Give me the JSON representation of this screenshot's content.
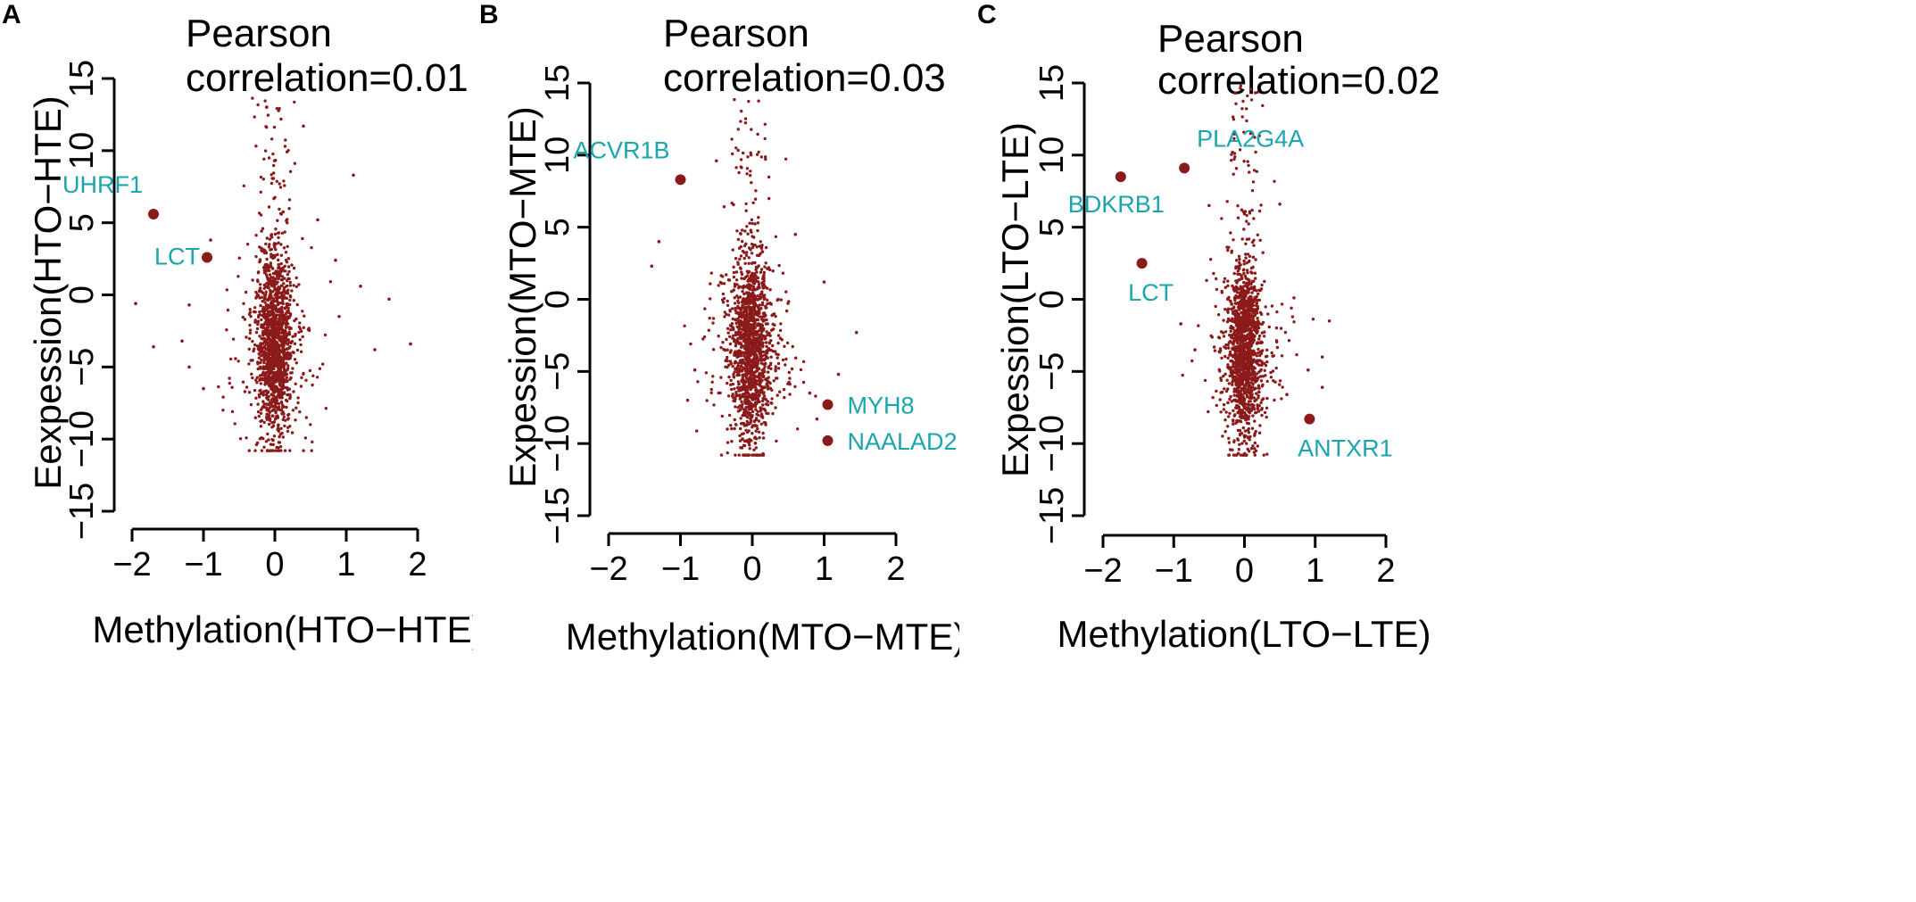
{
  "chart_data": [
    {
      "type": "scatter",
      "panel_label": "A",
      "title_line1": "Pearson",
      "title_line2": "correlation=0.01",
      "xlabel": "Methylation(HTO−HTE)",
      "ylabel": "Eexpession(HTO−HTE)",
      "xlim": [
        -2,
        2
      ],
      "ylim": [
        -15,
        15
      ],
      "xticks": [
        "−2",
        "−1",
        "0",
        "1",
        "2"
      ],
      "yticks": [
        "−15",
        "−10",
        "−5",
        "0",
        "5",
        "10",
        "15"
      ],
      "point_color": "#8b1a1a",
      "label_color": "#1aa5ad",
      "cloud": {
        "x_center": 0,
        "x_spread": 0.12,
        "y_center": -3.5,
        "y_spread": 3.2,
        "y_min": -10.8,
        "y_max": 14,
        "n": 1500
      },
      "outliers": [
        {
          "x": 1.1,
          "y": 8.3
        },
        {
          "x": 1.6,
          "y": -0.3
        },
        {
          "x": 1.9,
          "y": -3.4
        },
        {
          "x": -1.95,
          "y": -0.6
        },
        {
          "x": -1.7,
          "y": -3.6
        },
        {
          "x": -1.3,
          "y": -3.2
        },
        {
          "x": -1.2,
          "y": -5
        },
        {
          "x": -1.2,
          "y": -0.7
        },
        {
          "x": -0.9,
          "y": 3.8
        },
        {
          "x": 0.6,
          "y": 5.2
        },
        {
          "x": 0.4,
          "y": 11.7
        },
        {
          "x": 1.4,
          "y": -3.8
        },
        {
          "x": 1.2,
          "y": 0.6
        },
        {
          "x": 0.85,
          "y": 2.4
        },
        {
          "x": -1.0,
          "y": -6.5
        },
        {
          "x": 0.9,
          "y": -1.5
        }
      ],
      "highlights": [
        {
          "x": -1.7,
          "y": 5.6,
          "label": "UHRF1",
          "pos": "above-left"
        },
        {
          "x": -0.95,
          "y": 2.6,
          "label": "LCT",
          "pos": "left"
        }
      ],
      "seed": 11
    },
    {
      "type": "scatter",
      "panel_label": "B",
      "title_line1": "Pearson",
      "title_line2": "correlation=0.03",
      "xlabel": "Methylation(MTO−MTE)",
      "ylabel": "Expession(MTO−MTE)",
      "xlim": [
        -2,
        2
      ],
      "ylim": [
        -15,
        15
      ],
      "xticks": [
        "−2",
        "−1",
        "0",
        "1",
        "2"
      ],
      "yticks": [
        "−15",
        "−10",
        "−5",
        "0",
        "5",
        "10",
        "15"
      ],
      "point_color": "#8b1a1a",
      "label_color": "#1aa5ad",
      "cloud": {
        "x_center": -0.02,
        "x_spread": 0.13,
        "y_center": -3.5,
        "y_spread": 3.2,
        "y_min": -10.8,
        "y_max": 13.9,
        "n": 1500
      },
      "outliers": [
        {
          "x": -1.4,
          "y": 2.3
        },
        {
          "x": -1.3,
          "y": 4
        },
        {
          "x": 1.45,
          "y": -2.3
        },
        {
          "x": 0.8,
          "y": -6.5
        },
        {
          "x": 0.9,
          "y": -8.3
        },
        {
          "x": -0.9,
          "y": -7
        },
        {
          "x": -0.5,
          "y": 9.6
        },
        {
          "x": 1.2,
          "y": -5.2
        },
        {
          "x": 0.6,
          "y": 4.5
        },
        {
          "x": -0.8,
          "y": -4.9
        },
        {
          "x": 1.0,
          "y": 1.2
        }
      ],
      "highlights": [
        {
          "x": -1.0,
          "y": 8.3,
          "label": "ACVR1B",
          "pos": "above-left"
        },
        {
          "x": 1.05,
          "y": -7.3,
          "label": "MYH8",
          "pos": "right"
        },
        {
          "x": 1.05,
          "y": -9.8,
          "label": "NAALAD2",
          "pos": "right"
        }
      ],
      "seed": 23
    },
    {
      "type": "scatter",
      "panel_label": "C",
      "title_line1": "Pearson",
      "title_line2": "correlation=0.02",
      "xlabel": "Methylation(LTO−LTE)",
      "ylabel": "Expession(LTO−LTE)",
      "xlim": [
        -2,
        2
      ],
      "ylim": [
        -15,
        15
      ],
      "xticks": [
        "−2",
        "−1",
        "0",
        "1",
        "2"
      ],
      "yticks": [
        "−15",
        "−10",
        "−5",
        "0",
        "5",
        "10",
        "15"
      ],
      "point_color": "#8b1a1a",
      "label_color": "#1aa5ad",
      "cloud": {
        "x_center": 0,
        "x_spread": 0.12,
        "y_center": -3.5,
        "y_spread": 3.2,
        "y_min": -10.8,
        "y_max": 14.8,
        "n": 1500
      },
      "outliers": [
        {
          "x": 1.2,
          "y": -1.5
        },
        {
          "x": 1.1,
          "y": -4
        },
        {
          "x": -0.7,
          "y": -3.5
        },
        {
          "x": -0.9,
          "y": -1.7
        },
        {
          "x": 0.7,
          "y": 0.1
        },
        {
          "x": 0.9,
          "y": -4.9
        },
        {
          "x": -0.5,
          "y": 6.5
        },
        {
          "x": 0.5,
          "y": 6.6
        },
        {
          "x": 0.6,
          "y": -6.6
        },
        {
          "x": 1.1,
          "y": -6.1
        }
      ],
      "highlights": [
        {
          "x": -1.75,
          "y": 8.5,
          "label": "BDKRB1",
          "pos": "below-left"
        },
        {
          "x": -0.85,
          "y": 9.1,
          "label": "PLA2G4A",
          "pos": "above-right"
        },
        {
          "x": -1.45,
          "y": 2.5,
          "label": "LCT",
          "pos": "below"
        },
        {
          "x": 0.92,
          "y": -8.3,
          "label": "ANTXR1",
          "pos": "below-right"
        }
      ],
      "seed": 37
    }
  ]
}
